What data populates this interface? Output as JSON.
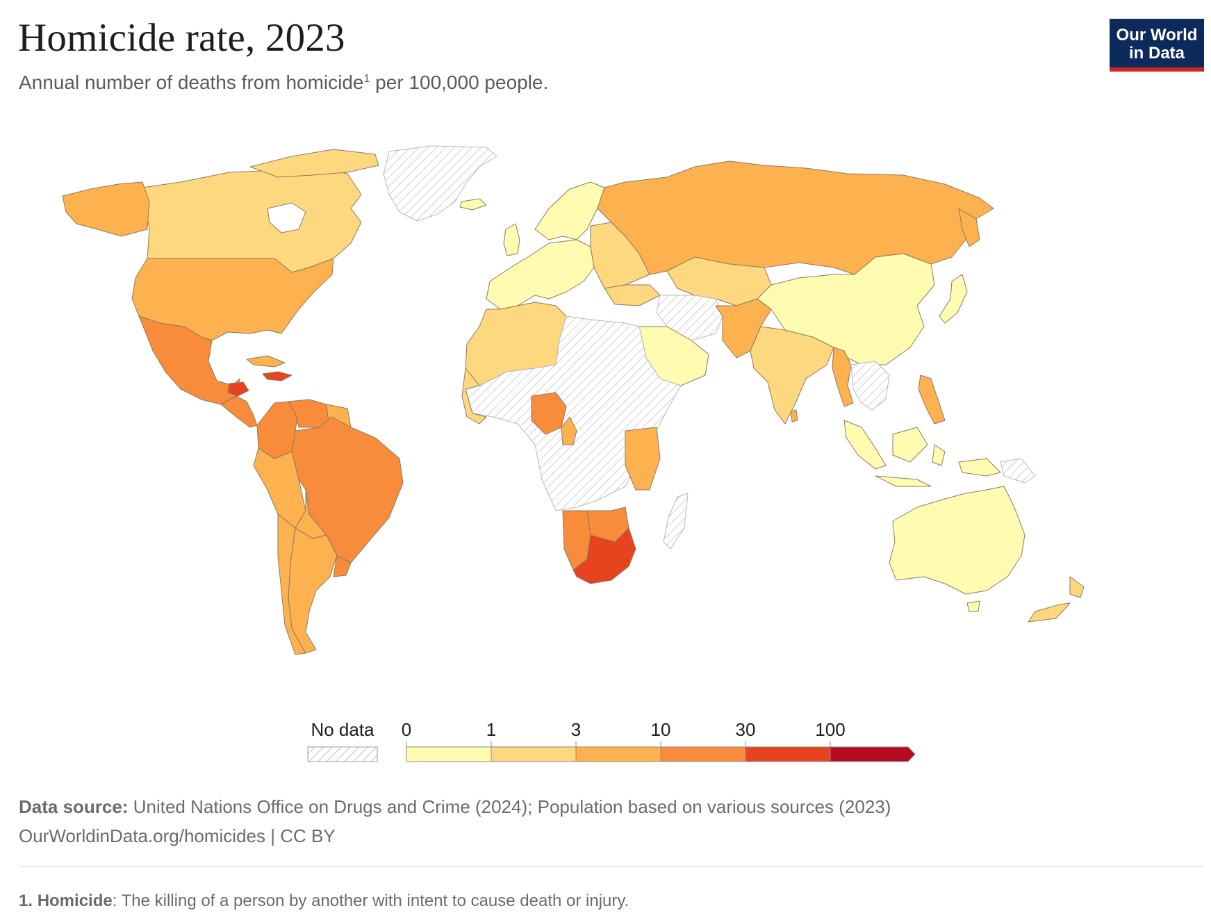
{
  "header": {
    "title": "Homicide rate, 2023",
    "subtitle": "Annual number of deaths from homicide",
    "subtitle_marker": "1",
    "subtitle_tail": " per 100,000 people."
  },
  "logo": {
    "line1": "Our World",
    "line2": "in Data",
    "bg": "#0c2a5c",
    "accent": "#ce261e"
  },
  "legend": {
    "no_data_label": "No data",
    "bins": [
      {
        "from": "0",
        "color": "#fffcb2"
      },
      {
        "from": "1",
        "color": "#fed87e"
      },
      {
        "from": "3",
        "color": "#fdb24f"
      },
      {
        "from": "10",
        "color": "#f98c3b"
      },
      {
        "from": "30",
        "color": "#e8431f"
      },
      {
        "from": "100",
        "color": "#b60a20"
      }
    ]
  },
  "chart_data": {
    "type": "choropleth",
    "title": "Homicide rate, 2023",
    "unit": "deaths per 100,000 people",
    "bins": [
      "0-1",
      "1-3",
      "3-10",
      "10-30",
      "30-100",
      "100+"
    ],
    "regions": [
      {
        "name": "Greenland",
        "bin": "No data"
      },
      {
        "name": "Canada",
        "bin": "1-3"
      },
      {
        "name": "Alaska",
        "bin": "3-10"
      },
      {
        "name": "United States",
        "bin": "3-10"
      },
      {
        "name": "Mexico",
        "bin": "10-30"
      },
      {
        "name": "Central America",
        "bin": "10-30"
      },
      {
        "name": "Honduras",
        "bin": "30-100"
      },
      {
        "name": "Colombia",
        "bin": "10-30"
      },
      {
        "name": "Venezuela",
        "bin": "10-30"
      },
      {
        "name": "Brazil",
        "bin": "10-30"
      },
      {
        "name": "Peru",
        "bin": "3-10"
      },
      {
        "name": "Argentina",
        "bin": "3-10"
      },
      {
        "name": "Chile",
        "bin": "3-10"
      },
      {
        "name": "Western Europe",
        "bin": "0-1"
      },
      {
        "name": "Eastern Europe",
        "bin": "1-3"
      },
      {
        "name": "Russia",
        "bin": "3-10"
      },
      {
        "name": "Kazakhstan",
        "bin": "1-3"
      },
      {
        "name": "China",
        "bin": "0-1"
      },
      {
        "name": "Japan",
        "bin": "0-1"
      },
      {
        "name": "India",
        "bin": "1-3"
      },
      {
        "name": "Pakistan",
        "bin": "3-10"
      },
      {
        "name": "Myanmar",
        "bin": "3-10"
      },
      {
        "name": "Southeast Asia",
        "bin": "0-1"
      },
      {
        "name": "Philippines",
        "bin": "3-10"
      },
      {
        "name": "Saudi Arabia",
        "bin": "0-1"
      },
      {
        "name": "North Africa",
        "bin": "1-3"
      },
      {
        "name": "Sub-Saharan Africa",
        "bin": "No data"
      },
      {
        "name": "Nigeria",
        "bin": "10-30"
      },
      {
        "name": "Tanzania",
        "bin": "3-10"
      },
      {
        "name": "Namibia",
        "bin": "10-30"
      },
      {
        "name": "South Africa",
        "bin": "30-100"
      },
      {
        "name": "Australia",
        "bin": "0-1"
      },
      {
        "name": "New Zealand",
        "bin": "1-3"
      }
    ]
  },
  "source": {
    "label": "Data source:",
    "text": " United Nations Office on Drugs and Crime (2024); Population based on various sources (2023)",
    "url_line": "OurWorldinData.org/homicides | CC BY"
  },
  "footnote": {
    "number": "1.",
    "term": "Homicide",
    "text": ": The killing of a person by another with intent to cause death or injury."
  }
}
